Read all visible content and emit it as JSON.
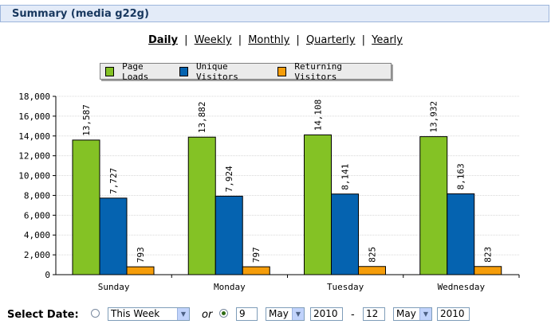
{
  "header": {
    "title": "Summary (media g22g)"
  },
  "periods": [
    {
      "label": "Daily",
      "active": true
    },
    {
      "label": "Weekly",
      "active": false
    },
    {
      "label": "Monthly",
      "active": false
    },
    {
      "label": "Quarterly",
      "active": false
    },
    {
      "label": "Yearly",
      "active": false
    }
  ],
  "separator": "|",
  "legend": [
    {
      "label": "Page Loads",
      "color": "#84c225"
    },
    {
      "label": "Unique Visitors",
      "color": "#0563b0"
    },
    {
      "label": "Returning Visitors",
      "color": "#f59d0a"
    }
  ],
  "chart_data": {
    "type": "bar",
    "categories": [
      "Sunday",
      "Monday",
      "Tuesday",
      "Wednesday"
    ],
    "series": [
      {
        "name": "Page Loads",
        "color": "#84c225",
        "values": [
          13587,
          13882,
          14108,
          13932
        ],
        "labels": [
          "13,587",
          "13,882",
          "14,108",
          "13,932"
        ]
      },
      {
        "name": "Unique Visitors",
        "color": "#0563b0",
        "values": [
          7727,
          7924,
          8141,
          8163
        ],
        "labels": [
          "7,727",
          "7,924",
          "8,141",
          "8,163"
        ]
      },
      {
        "name": "Returning Visitors",
        "color": "#f59d0a",
        "values": [
          793,
          797,
          825,
          823
        ],
        "labels": [
          "793",
          "797",
          "825",
          "823"
        ]
      }
    ],
    "ylim": [
      0,
      18000
    ],
    "yticks": [
      "0",
      "2,000",
      "4,000",
      "6,000",
      "8,000",
      "10,000",
      "12,000",
      "14,000",
      "16,000",
      "18,000"
    ],
    "grid": true,
    "legend_position": "top"
  },
  "select_date": {
    "label": "Select Date:",
    "preset": {
      "selected": false,
      "value": "This Week"
    },
    "or_text": "or",
    "range": {
      "selected": true,
      "from_day": "9",
      "from_month": "May",
      "from_year": "2010",
      "dash": "-",
      "to_day": "12",
      "to_month": "May",
      "to_year": "2010"
    }
  }
}
